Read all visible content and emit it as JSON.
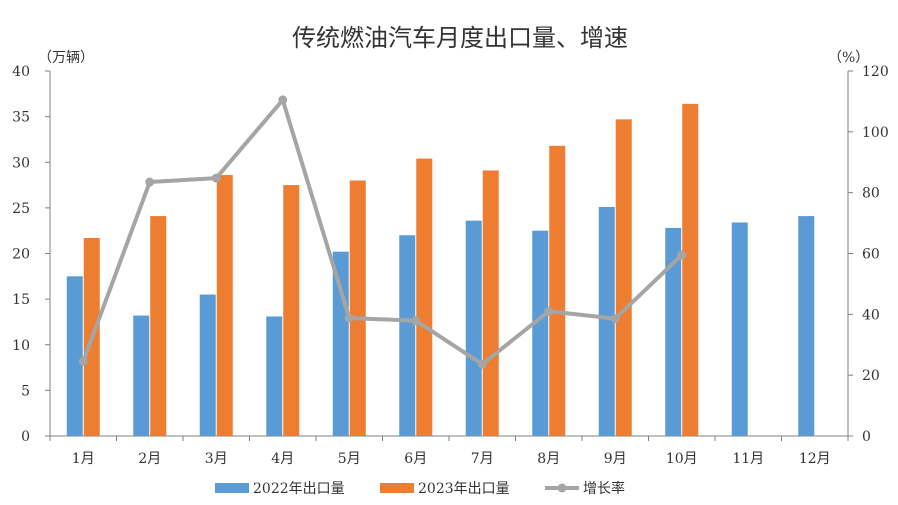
{
  "chart_data": {
    "type": "bar+line",
    "title": "传统燃油汽车月度出口量、增速",
    "left_unit": "（万辆）",
    "right_unit": "（%）",
    "categories": [
      "1月",
      "2月",
      "3月",
      "4月",
      "5月",
      "6月",
      "7月",
      "8月",
      "9月",
      "10月",
      "11月",
      "12月"
    ],
    "y_left": {
      "min": 0,
      "max": 40,
      "step": 5,
      "ticks": [
        "0",
        "5",
        "10",
        "15",
        "20",
        "25",
        "30",
        "35",
        "40"
      ]
    },
    "y_right": {
      "min": 0,
      "max": 120,
      "step": 20,
      "ticks": [
        "0",
        "20",
        "40",
        "60",
        "80",
        "100",
        "120"
      ]
    },
    "series": [
      {
        "name": "2022年出口量",
        "type": "bar",
        "axis": "left",
        "color": "#5B9BD5",
        "values": [
          17.5,
          13.2,
          15.5,
          13.1,
          20.2,
          22.0,
          23.6,
          22.5,
          25.1,
          22.8,
          23.4,
          24.1
        ]
      },
      {
        "name": "2023年出口量",
        "type": "bar",
        "axis": "left",
        "color": "#ED7D31",
        "values": [
          21.7,
          24.1,
          28.6,
          27.5,
          28.0,
          30.4,
          29.1,
          31.8,
          34.7,
          36.4,
          null,
          null
        ]
      },
      {
        "name": "增长率",
        "type": "line",
        "axis": "right",
        "color": "#A5A5A5",
        "values": [
          24.5,
          83.5,
          84.8,
          110.5,
          38.8,
          37.9,
          23.6,
          41.0,
          38.6,
          59.5,
          null,
          null
        ]
      }
    ],
    "legend": {
      "position": "bottom"
    }
  }
}
